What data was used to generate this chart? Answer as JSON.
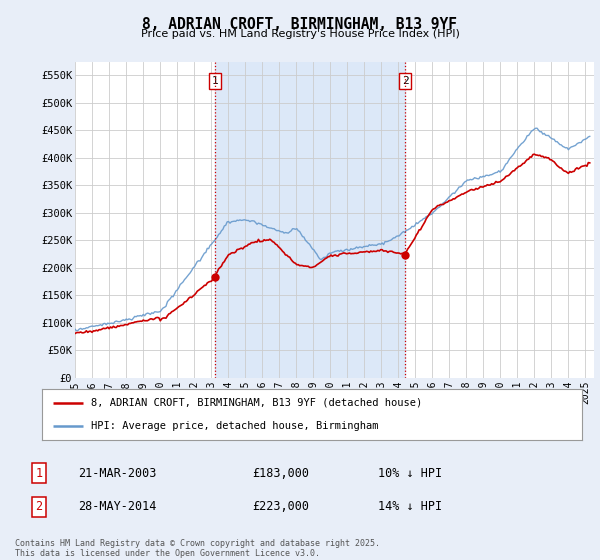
{
  "title": "8, ADRIAN CROFT, BIRMINGHAM, B13 9YF",
  "subtitle": "Price paid vs. HM Land Registry's House Price Index (HPI)",
  "background_color": "#e8eef8",
  "plot_bg_color": "#ffffff",
  "shade_color": "#dce8f8",
  "ylabel_ticks": [
    "£0",
    "£50K",
    "£100K",
    "£150K",
    "£200K",
    "£250K",
    "£300K",
    "£350K",
    "£400K",
    "£450K",
    "£500K",
    "£550K"
  ],
  "ytick_values": [
    0,
    50000,
    100000,
    150000,
    200000,
    250000,
    300000,
    350000,
    400000,
    450000,
    500000,
    550000
  ],
  "ylim": [
    0,
    575000
  ],
  "xlim_start": 1995.0,
  "xlim_end": 2025.5,
  "xtick_years": [
    1995,
    1996,
    1997,
    1998,
    1999,
    2000,
    2001,
    2002,
    2003,
    2004,
    2005,
    2006,
    2007,
    2008,
    2009,
    2010,
    2011,
    2012,
    2013,
    2014,
    2015,
    2016,
    2017,
    2018,
    2019,
    2020,
    2021,
    2022,
    2023,
    2024,
    2025
  ],
  "transaction1_x": 2003.22,
  "transaction1_y": 183000,
  "transaction2_x": 2014.41,
  "transaction2_y": 223000,
  "vline_color": "#cc0000",
  "vline_style": ":",
  "hpi_line_color": "#6699cc",
  "price_line_color": "#cc0000",
  "legend_label_price": "8, ADRIAN CROFT, BIRMINGHAM, B13 9YF (detached house)",
  "legend_label_hpi": "HPI: Average price, detached house, Birmingham",
  "table_row1": [
    "1",
    "21-MAR-2003",
    "£183,000",
    "10% ↓ HPI"
  ],
  "table_row2": [
    "2",
    "28-MAY-2014",
    "£223,000",
    "14% ↓ HPI"
  ],
  "footer": "Contains HM Land Registry data © Crown copyright and database right 2025.\nThis data is licensed under the Open Government Licence v3.0.",
  "marker_color": "#cc0000",
  "marker_size": 6
}
